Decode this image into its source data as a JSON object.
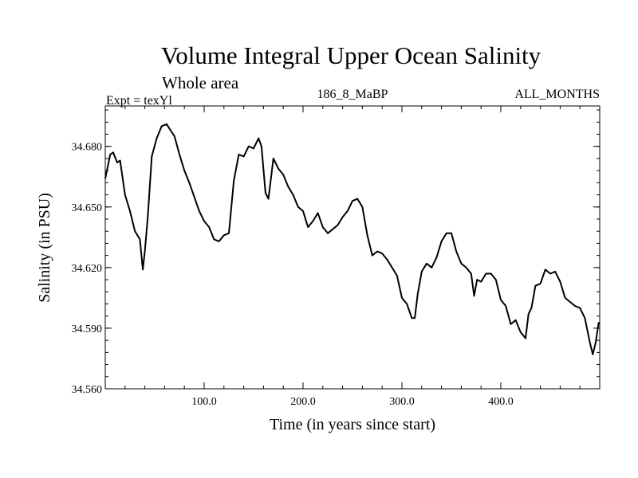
{
  "chart_data": {
    "type": "line",
    "title": "Volume Integral Upper Ocean Salinity",
    "subtitle": "Whole area",
    "experiment": "Expt = texYl",
    "run_id": "186_8_MaBP",
    "months": "ALL_MONTHS",
    "xlabel": "Time (in years since start)",
    "ylabel": "Salinity (in PSU)",
    "xlim": [
      0,
      500
    ],
    "ylim": [
      34.56,
      34.7
    ],
    "x_ticks": [
      100,
      200,
      300,
      400
    ],
    "x_tick_labels": [
      "100.0",
      "200.0",
      "300.0",
      "400.0"
    ],
    "y_ticks": [
      34.56,
      34.59,
      34.62,
      34.65,
      34.68
    ],
    "y_tick_labels": [
      "34.560",
      "34.590",
      "34.620",
      "34.650",
      "34.680"
    ],
    "grid": false,
    "line_color": "#000000",
    "series": [
      {
        "x": [
          0,
          5,
          8,
          12,
          15,
          20,
          25,
          30,
          35,
          38,
          40,
          43,
          47,
          52,
          57,
          62,
          66,
          70,
          75,
          80,
          85,
          90,
          95,
          100,
          105,
          110,
          115,
          120,
          125,
          130,
          135,
          140,
          145,
          150,
          155,
          158,
          162,
          165,
          170,
          175,
          180,
          185,
          190,
          195,
          200,
          205,
          210,
          215,
          220,
          225,
          230,
          235,
          240,
          245,
          250,
          255,
          260,
          265,
          270,
          275,
          280,
          285,
          290,
          295,
          300,
          305,
          310,
          313,
          316,
          320,
          325,
          330,
          335,
          340,
          345,
          350,
          355,
          360,
          365,
          370,
          373,
          376,
          380,
          385,
          390,
          395,
          400,
          405,
          410,
          415,
          420,
          425,
          428,
          431,
          435,
          440,
          445,
          450,
          455,
          460,
          465,
          470,
          475,
          480,
          485,
          490,
          493,
          496,
          499
        ],
        "y": [
          34.664,
          34.676,
          34.677,
          34.672,
          34.673,
          34.656,
          34.648,
          34.638,
          34.634,
          34.619,
          34.628,
          34.645,
          34.675,
          34.684,
          34.69,
          34.691,
          34.688,
          34.685,
          34.676,
          34.668,
          34.662,
          34.655,
          34.648,
          34.643,
          34.64,
          34.634,
          34.633,
          34.636,
          34.637,
          34.663,
          34.676,
          34.675,
          34.68,
          34.679,
          34.684,
          34.68,
          34.657,
          34.654,
          34.674,
          34.669,
          34.666,
          34.66,
          34.656,
          34.65,
          34.648,
          34.64,
          34.643,
          34.647,
          34.64,
          34.637,
          34.639,
          34.641,
          34.645,
          34.648,
          34.653,
          34.654,
          34.65,
          34.636,
          34.626,
          34.628,
          34.627,
          34.624,
          34.62,
          34.616,
          34.605,
          34.602,
          34.595,
          34.595,
          34.607,
          34.618,
          34.622,
          34.62,
          34.625,
          34.633,
          34.637,
          34.637,
          34.628,
          34.622,
          34.62,
          34.617,
          34.606,
          34.614,
          34.613,
          34.617,
          34.617,
          34.614,
          34.604,
          34.601,
          34.592,
          34.594,
          34.588,
          34.585,
          34.597,
          34.6,
          34.611,
          34.612,
          34.619,
          34.617,
          34.618,
          34.613,
          34.605,
          34.603,
          34.601,
          34.6,
          34.595,
          34.583,
          34.577,
          34.583,
          34.593
        ]
      }
    ]
  }
}
